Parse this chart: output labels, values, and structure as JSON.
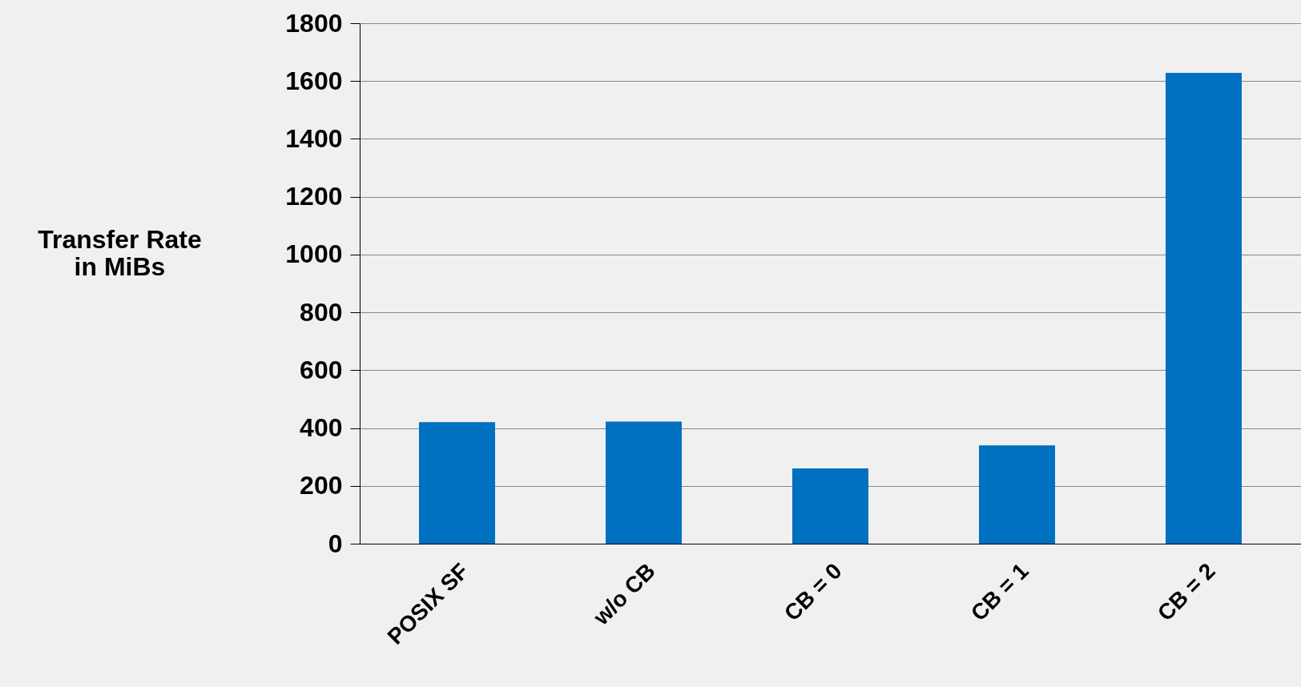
{
  "chart_data": {
    "type": "bar",
    "ylabel": "Transfer Rate in MiBs",
    "categories": [
      "POSIX SF",
      "w/o CB",
      "CB = 0",
      "CB = 1",
      "CB = 2"
    ],
    "values": [
      420,
      422,
      260,
      340,
      1628
    ],
    "color": "#0070c0",
    "ylim": [
      0,
      1800
    ],
    "yticks": [
      0,
      200,
      400,
      600,
      800,
      1000,
      1200,
      1400,
      1600,
      1800
    ],
    "grid": "y"
  }
}
